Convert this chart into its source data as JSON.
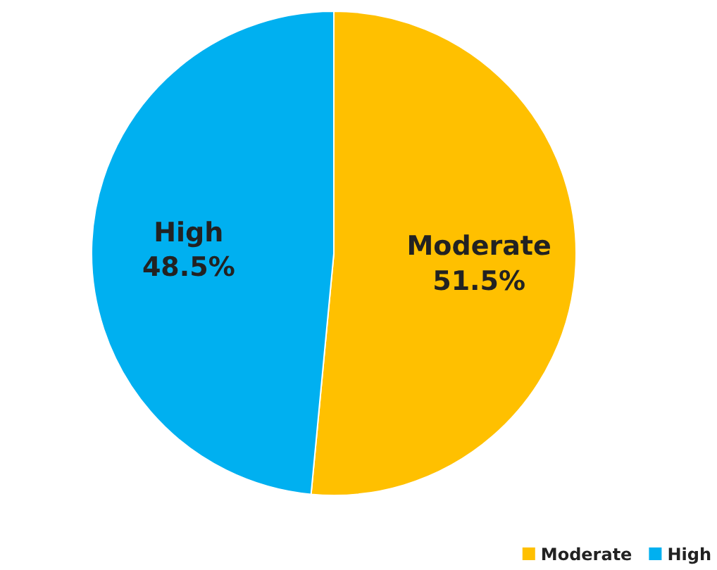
{
  "chart_data": {
    "type": "pie",
    "categories": [
      "Moderate",
      "High"
    ],
    "values": [
      51.5,
      48.5
    ],
    "value_labels": [
      "51.5%",
      "48.5%"
    ],
    "colors": [
      "#ffc000",
      "#00b0f0"
    ],
    "legend": "bottom right"
  }
}
